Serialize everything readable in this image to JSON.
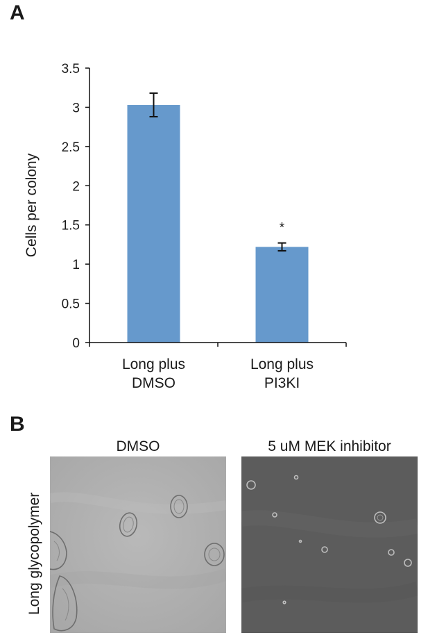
{
  "panel_a": {
    "letter": "A"
  },
  "panel_b": {
    "letter": "B"
  },
  "chart_data": {
    "type": "bar",
    "categories": [
      [
        "Long plus",
        "DMSO"
      ],
      [
        "Long plus",
        "PI3KI"
      ]
    ],
    "values": [
      3.03,
      1.22
    ],
    "errors": [
      0.15,
      0.05
    ],
    "annotations": [
      "",
      "*"
    ],
    "ylabel": "Cells per colony",
    "xlabel": "",
    "ylim": [
      0,
      3.5
    ],
    "yticks": [
      "0",
      "0.5",
      "1",
      "1.5",
      "2",
      "2.5",
      "3",
      "3.5"
    ],
    "bar_color": "#6699cc",
    "grid": false
  },
  "images": [
    {
      "title": "DMSO"
    },
    {
      "title": "5 uM MEK inhibitor"
    }
  ],
  "row_label": "Long glycopolymer"
}
